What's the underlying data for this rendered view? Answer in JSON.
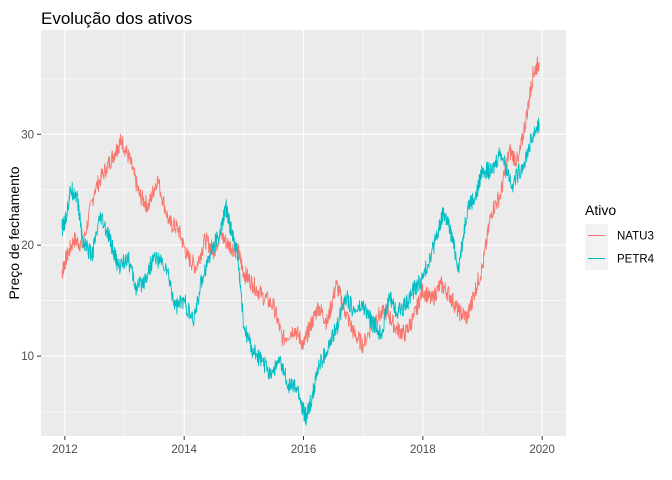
{
  "chart_data": {
    "type": "line",
    "title": "Evolução dos ativos",
    "xlabel": "",
    "ylabel": "Preço de fechamento",
    "xlim": [
      2011.6,
      2020.4
    ],
    "ylim": [
      2.8,
      39.4
    ],
    "x_ticks": [
      2012,
      2014,
      2016,
      2018,
      2020
    ],
    "x_tick_labels": [
      "2012",
      "2014",
      "2016",
      "2018",
      "2020"
    ],
    "y_ticks": [
      10,
      20,
      30
    ],
    "y_tick_labels": [
      "10",
      "20",
      "30"
    ],
    "grid": true,
    "legend": {
      "title": "Ativo",
      "position": "right"
    },
    "series": [
      {
        "name": "NATU3",
        "color": "#F8766D",
        "x": [
          2011.95,
          2012.0,
          2012.15,
          2012.3,
          2012.5,
          2012.7,
          2012.85,
          2012.95,
          2013.1,
          2013.25,
          2013.4,
          2013.55,
          2013.75,
          2013.9,
          2014.05,
          2014.2,
          2014.35,
          2014.5,
          2014.6,
          2014.75,
          2014.9,
          2015.0,
          2015.15,
          2015.3,
          2015.5,
          2015.65,
          2015.85,
          2016.0,
          2016.1,
          2016.25,
          2016.4,
          2016.55,
          2016.7,
          2016.85,
          2017.0,
          2017.2,
          2017.4,
          2017.55,
          2017.7,
          2017.85,
          2018.0,
          2018.15,
          2018.3,
          2018.45,
          2018.6,
          2018.75,
          2018.85,
          2019.0,
          2019.15,
          2019.3,
          2019.45,
          2019.6,
          2019.75,
          2019.85,
          2019.95
        ],
        "y": [
          17.5,
          18.5,
          20.5,
          20.0,
          25.0,
          27.0,
          28.5,
          29.5,
          27.5,
          24.5,
          23.5,
          26.0,
          22.0,
          21.5,
          19.0,
          18.0,
          20.5,
          19.5,
          21.0,
          20.0,
          19.5,
          17.5,
          16.5,
          15.5,
          14.5,
          11.5,
          12.5,
          11.0,
          12.5,
          14.5,
          13.0,
          16.5,
          14.0,
          12.0,
          11.0,
          13.5,
          14.0,
          12.5,
          12.0,
          13.5,
          16.0,
          15.0,
          16.5,
          15.5,
          14.0,
          13.5,
          15.5,
          18.0,
          23.0,
          24.5,
          28.5,
          27.5,
          32.0,
          35.5,
          36.5
        ]
      },
      {
        "name": "PETR4",
        "color": "#00BFC4",
        "x": [
          2011.95,
          2012.0,
          2012.1,
          2012.2,
          2012.3,
          2012.45,
          2012.6,
          2012.75,
          2012.9,
          2013.05,
          2013.2,
          2013.35,
          2013.5,
          2013.7,
          2013.85,
          2014.0,
          2014.15,
          2014.3,
          2014.45,
          2014.6,
          2014.7,
          2014.8,
          2014.9,
          2015.0,
          2015.15,
          2015.3,
          2015.45,
          2015.6,
          2015.75,
          2015.9,
          2016.0,
          2016.05,
          2016.15,
          2016.25,
          2016.4,
          2016.55,
          2016.7,
          2016.85,
          2017.0,
          2017.15,
          2017.3,
          2017.45,
          2017.55,
          2017.7,
          2017.85,
          2018.0,
          2018.15,
          2018.25,
          2018.35,
          2018.45,
          2018.6,
          2018.75,
          2018.9,
          2019.0,
          2019.15,
          2019.3,
          2019.5,
          2019.7,
          2019.85,
          2019.95
        ],
        "y": [
          21.5,
          22.0,
          25.0,
          24.5,
          20.5,
          19.0,
          22.5,
          20.5,
          18.0,
          19.0,
          16.0,
          17.0,
          19.0,
          18.0,
          14.5,
          15.0,
          13.0,
          17.0,
          19.5,
          21.0,
          23.5,
          21.0,
          19.0,
          12.5,
          10.5,
          9.5,
          8.5,
          9.5,
          7.5,
          7.0,
          5.0,
          4.5,
          6.5,
          9.0,
          10.5,
          12.5,
          15.5,
          14.0,
          14.5,
          13.0,
          12.0,
          15.5,
          14.0,
          14.5,
          16.0,
          17.0,
          19.5,
          21.0,
          23.0,
          21.5,
          18.0,
          23.5,
          24.5,
          27.0,
          26.5,
          28.5,
          25.5,
          27.5,
          30.0,
          31.0
        ]
      }
    ]
  }
}
